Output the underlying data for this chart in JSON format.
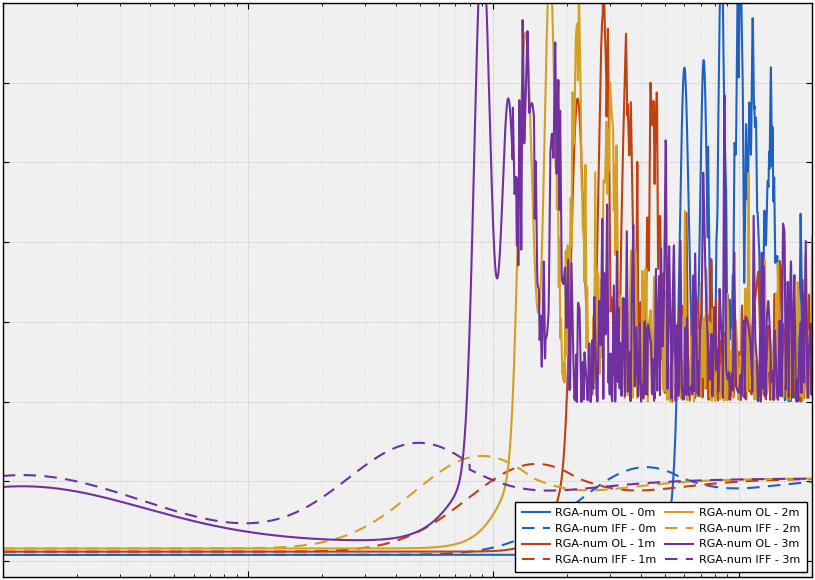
{
  "background_color": "#f2f2f2",
  "plot_bg_color": "#f2f2f2",
  "colors": {
    "blue": "#2060c0",
    "orange": "#d4a020",
    "red": "#c04010",
    "purple": "#7030a0"
  },
  "legend_entries": [
    {
      "label": "RGA-num OL - 0m",
      "color_key": "blue",
      "linestyle": "solid"
    },
    {
      "label": "RGA-num IFF - 0m",
      "color_key": "blue",
      "linestyle": "dashed"
    },
    {
      "label": "RGA-num OL - 1m",
      "color_key": "red",
      "linestyle": "solid"
    },
    {
      "label": "RGA-num IFF - 1m",
      "color_key": "red",
      "linestyle": "dashed"
    },
    {
      "label": "RGA-num OL - 2m",
      "color_key": "orange",
      "linestyle": "solid"
    },
    {
      "label": "RGA-num IFF - 2m",
      "color_key": "orange",
      "linestyle": "dashed"
    },
    {
      "label": "RGA-num OL - 3m",
      "color_key": "purple",
      "linestyle": "solid"
    },
    {
      "label": "RGA-num IFF - 3m",
      "color_key": "purple",
      "linestyle": "dashed"
    }
  ],
  "ylim": [
    -0.1,
    3.5
  ],
  "linewidth": 1.5
}
